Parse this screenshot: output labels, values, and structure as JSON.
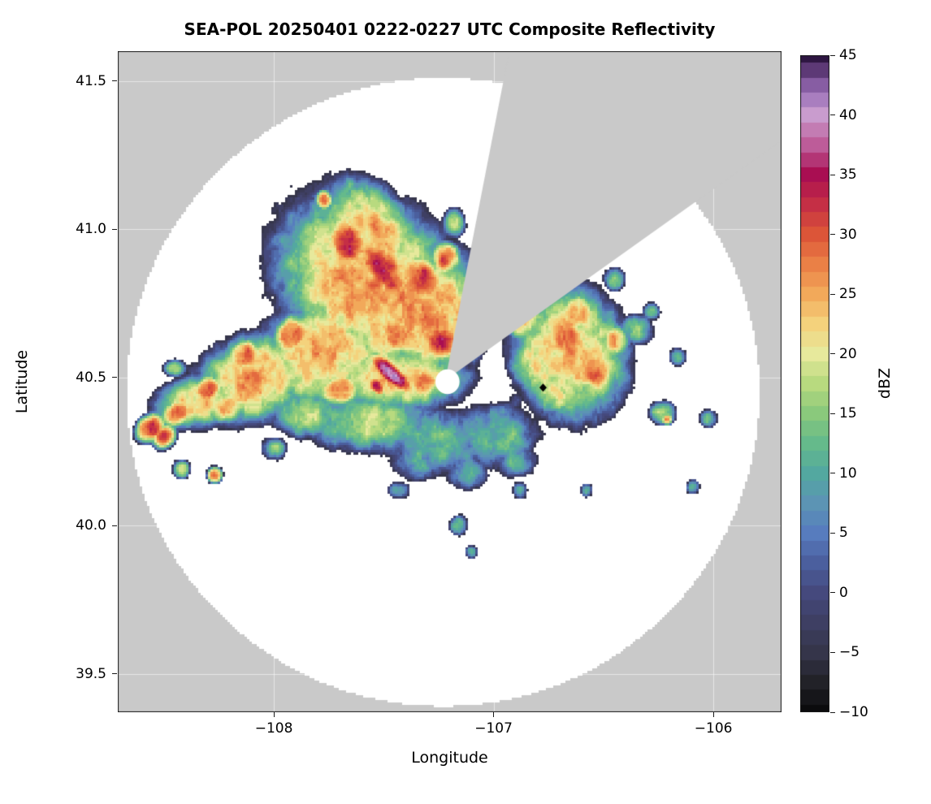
{
  "chart_data": {
    "type": "heatmap",
    "title": "SEA-POL 20250401 0222-0227 UTC Composite Reflectivity",
    "xlabel": "Longitude",
    "ylabel": "Latitude",
    "xlim": [
      -108.71,
      -105.69
    ],
    "ylim": [
      39.37,
      41.6
    ],
    "xticks": [
      -108,
      -107,
      -106
    ],
    "xtick_labels": [
      "−108",
      "−107",
      "−106"
    ],
    "yticks": [
      39.5,
      40.0,
      40.5,
      41.0,
      41.5
    ],
    "ytick_labels": [
      "39.5",
      "40.0",
      "40.5",
      "41.0",
      "41.5"
    ],
    "grid": true,
    "colors": {
      "no_coverage": "#c9c9c9",
      "coverage": "#ffffff",
      "grid": "#ffffff",
      "frame": "#1a1a1a",
      "marker": "#000000"
    },
    "colorbar": {
      "label": "dBZ",
      "min": -10,
      "max": 45,
      "ticks": [
        45,
        40,
        35,
        30,
        25,
        20,
        15,
        10,
        5,
        0,
        -5,
        -10
      ],
      "tick_labels": [
        "45",
        "40",
        "35",
        "30",
        "25",
        "20",
        "15",
        "10",
        "5",
        "0",
        "−5",
        "−10"
      ]
    },
    "colormap_stops": [
      [
        -10,
        "#0b0b0d"
      ],
      [
        -7.5,
        "#222228"
      ],
      [
        -5,
        "#35354a"
      ],
      [
        -2.5,
        "#3e3f63"
      ],
      [
        0,
        "#45497d"
      ],
      [
        2.5,
        "#4b5f9e"
      ],
      [
        5,
        "#577cbe"
      ],
      [
        7.5,
        "#5c94b4"
      ],
      [
        10,
        "#53a8a0"
      ],
      [
        12.5,
        "#65ba8b"
      ],
      [
        15,
        "#8ac97c"
      ],
      [
        17.5,
        "#b8da7f"
      ],
      [
        20,
        "#e7e99c"
      ],
      [
        22.5,
        "#f4d27c"
      ],
      [
        25,
        "#f2a95a"
      ],
      [
        27.5,
        "#ea8046"
      ],
      [
        30,
        "#dc5538"
      ],
      [
        32.5,
        "#c52f45"
      ],
      [
        35,
        "#a90e52"
      ],
      [
        37.5,
        "#bd5c99"
      ],
      [
        40,
        "#c99cce"
      ],
      [
        41.5,
        "#a379bd"
      ],
      [
        43,
        "#7a4f96"
      ],
      [
        45,
        "#2e1642"
      ]
    ],
    "radar": {
      "center_lon": -107.22,
      "center_lat": 40.49,
      "coverage_center_lon": -107.23,
      "coverage_center_lat": 40.45,
      "coverage_rx_deg": 1.44,
      "coverage_ry_deg": 1.06,
      "blocked_sector_az_deg": [
        11,
        54.5
      ],
      "no_data_hole": {
        "lon": -107.21,
        "lat": 40.485,
        "rx": 0.055,
        "ry": 0.042
      }
    },
    "marker": {
      "lon": -106.775,
      "lat": 40.465,
      "shape": "diamond",
      "color": "#000000"
    },
    "echo_blob_format": "[lon_deg, lat_deg, sigma_lon_deg, sigma_lat_deg, rotation_deg, peak_dbz]",
    "echoes_dbz_blobs": [
      [
        -107.55,
        40.8,
        0.4,
        0.26,
        -20,
        26
      ],
      [
        -107.78,
        40.58,
        0.28,
        0.16,
        10,
        25
      ],
      [
        -107.3,
        40.72,
        0.24,
        0.2,
        0,
        26
      ],
      [
        -107.55,
        41.0,
        0.22,
        0.13,
        -30,
        24
      ],
      [
        -108.08,
        40.5,
        0.26,
        0.13,
        12,
        25
      ],
      [
        -107.45,
        40.5,
        0.3,
        0.1,
        0,
        24
      ],
      [
        -107.66,
        40.95,
        0.1,
        0.08,
        -30,
        31
      ],
      [
        -107.5,
        40.86,
        0.13,
        0.07,
        -35,
        33
      ],
      [
        -107.33,
        40.83,
        0.1,
        0.07,
        -25,
        32
      ],
      [
        -107.22,
        40.9,
        0.06,
        0.05,
        0,
        30
      ],
      [
        -107.92,
        40.64,
        0.08,
        0.06,
        20,
        30
      ],
      [
        -107.45,
        40.65,
        0.1,
        0.06,
        -30,
        29
      ],
      [
        -107.24,
        40.62,
        0.08,
        0.06,
        0,
        32
      ],
      [
        -108.13,
        40.57,
        0.07,
        0.05,
        10,
        29
      ],
      [
        -107.7,
        40.46,
        0.09,
        0.05,
        5,
        28
      ],
      [
        -107.46,
        40.51,
        0.1,
        0.03,
        -32,
        40
      ],
      [
        -107.53,
        40.47,
        0.04,
        0.025,
        -32,
        35
      ],
      [
        -108.33,
        40.42,
        0.2,
        0.08,
        8,
        23
      ],
      [
        -108.3,
        40.46,
        0.06,
        0.04,
        10,
        31
      ],
      [
        -108.44,
        40.38,
        0.07,
        0.04,
        15,
        29
      ],
      [
        -108.56,
        40.33,
        0.06,
        0.04,
        20,
        33
      ],
      [
        -108.5,
        40.3,
        0.05,
        0.035,
        20,
        30
      ],
      [
        -108.22,
        40.4,
        0.08,
        0.05,
        0,
        27
      ],
      [
        -108.45,
        40.53,
        0.05,
        0.03,
        0,
        16
      ],
      [
        -108.42,
        40.19,
        0.035,
        0.03,
        0,
        22
      ],
      [
        -108.27,
        40.17,
        0.03,
        0.025,
        0,
        28
      ],
      [
        -107.77,
        41.1,
        0.035,
        0.03,
        0,
        28
      ],
      [
        -107.18,
        41.02,
        0.05,
        0.05,
        0,
        17
      ],
      [
        -107.85,
        40.38,
        0.15,
        0.08,
        0,
        18
      ],
      [
        -108.0,
        40.26,
        0.06,
        0.04,
        0,
        13
      ],
      [
        -107.55,
        40.35,
        0.28,
        0.1,
        0,
        17
      ],
      [
        -107.25,
        40.28,
        0.24,
        0.11,
        0,
        13
      ],
      [
        -107.0,
        40.3,
        0.2,
        0.11,
        0,
        13
      ],
      [
        -107.35,
        40.22,
        0.12,
        0.07,
        0,
        10
      ],
      [
        -107.12,
        40.18,
        0.1,
        0.06,
        0,
        11
      ],
      [
        -106.9,
        40.22,
        0.1,
        0.06,
        0,
        10
      ],
      [
        -107.15,
        40.33,
        0.1,
        0.06,
        0,
        7
      ],
      [
        -106.95,
        40.38,
        0.08,
        0.05,
        0,
        6
      ],
      [
        -106.9,
        40.42,
        0.045,
        0.035,
        0,
        3
      ],
      [
        -107.32,
        40.48,
        0.08,
        0.05,
        0,
        27
      ],
      [
        -107.43,
        40.12,
        0.05,
        0.03,
        0,
        11
      ],
      [
        -106.65,
        40.58,
        0.24,
        0.2,
        -15,
        24
      ],
      [
        -106.66,
        40.63,
        0.1,
        0.08,
        -20,
        30
      ],
      [
        -106.54,
        40.52,
        0.08,
        0.07,
        0,
        28
      ],
      [
        -106.62,
        40.71,
        0.07,
        0.06,
        0,
        27
      ],
      [
        -106.45,
        40.62,
        0.06,
        0.05,
        0,
        25
      ],
      [
        -106.72,
        40.44,
        0.1,
        0.06,
        0,
        20
      ],
      [
        -106.88,
        40.72,
        0.1,
        0.08,
        -40,
        26
      ],
      [
        -106.8,
        40.55,
        0.12,
        0.1,
        0,
        21
      ],
      [
        -106.35,
        40.66,
        0.08,
        0.05,
        0,
        15
      ],
      [
        -106.45,
        40.83,
        0.05,
        0.04,
        0,
        15
      ],
      [
        -106.28,
        40.72,
        0.04,
        0.03,
        0,
        13
      ],
      [
        -106.16,
        40.57,
        0.04,
        0.03,
        0,
        13
      ],
      [
        -106.23,
        40.38,
        0.06,
        0.04,
        0,
        17
      ],
      [
        -106.21,
        40.36,
        0.025,
        0.02,
        0,
        24
      ],
      [
        -106.02,
        40.36,
        0.04,
        0.03,
        0,
        14
      ],
      [
        -106.09,
        40.13,
        0.03,
        0.025,
        0,
        13
      ],
      [
        -107.16,
        40.0,
        0.04,
        0.035,
        0,
        14
      ],
      [
        -107.1,
        39.91,
        0.03,
        0.025,
        0,
        11
      ],
      [
        -106.88,
        40.12,
        0.035,
        0.03,
        0,
        11
      ],
      [
        -106.58,
        40.12,
        0.03,
        0.025,
        0,
        12
      ]
    ]
  }
}
